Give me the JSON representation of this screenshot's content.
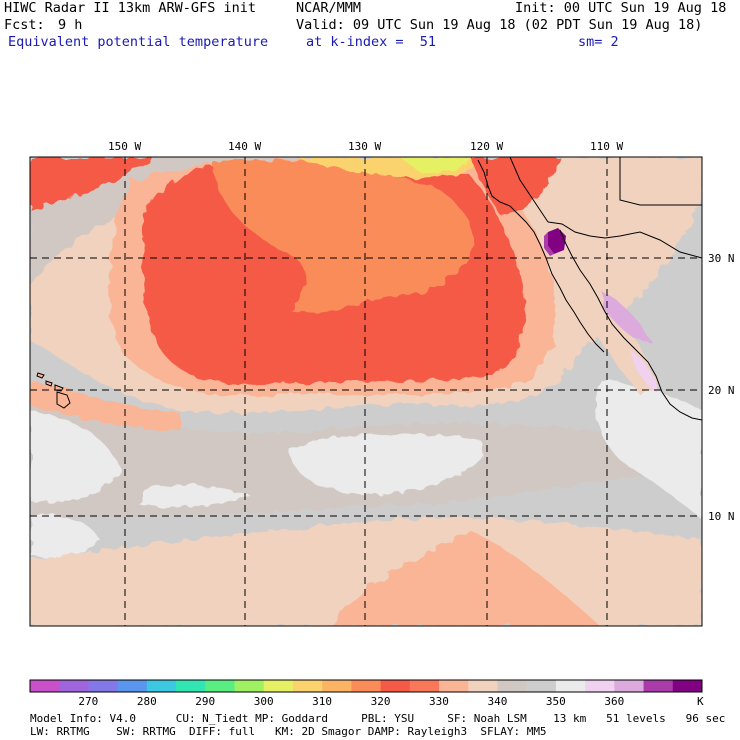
{
  "header": {
    "model_title": "HIWC Radar II 13km ARW-GFS init",
    "org": "NCAR/MMM",
    "init": "Init: 00 UTC Sun 19 Aug 18",
    "fcst_label": "Fcst:",
    "fcst_value": "9 h",
    "valid": "Valid: 09 UTC Sun 19 Aug 18 (02 PDT Sun 19 Aug 18)",
    "field_name": "Equivalent potential temperature",
    "level": "at k-index =  51",
    "smoothing": "sm= 2"
  },
  "map": {
    "lon_labels": [
      "150 W",
      "140 W",
      "130 W",
      "120 W",
      "110 W"
    ],
    "lat_labels": [
      "30 N",
      "20 N",
      "10 N"
    ]
  },
  "colorbar": {
    "unit": "K",
    "tick_labels": [
      "270",
      "280",
      "290",
      "300",
      "310",
      "320",
      "330",
      "340",
      "350",
      "360"
    ],
    "colors": [
      "#c850c8",
      "#a064dc",
      "#8278e6",
      "#5a96ee",
      "#3cc8e0",
      "#32e6b4",
      "#5aee82",
      "#a0f064",
      "#e6f064",
      "#fad26e",
      "#fab464",
      "#fa8c5a",
      "#f55a46",
      "#fa785a",
      "#fab496",
      "#f0d2be",
      "#d2c8c3",
      "#cdcdcd",
      "#ebebeb",
      "#f0d2f0",
      "#dcaadc",
      "#aa3caa",
      "#820082"
    ]
  },
  "footer": {
    "line1": "Model Info: V4.0      CU: N_Tiedt MP: Goddard     PBL: YSU     SF: Noah LSM    13 km   51 levels   96 sec",
    "line2": "LW: RRTMG    SW: RRTMG  DIFF: full   KM: 2D Smagor DAMP: Rayleigh3  SFLAY: MM5"
  }
}
